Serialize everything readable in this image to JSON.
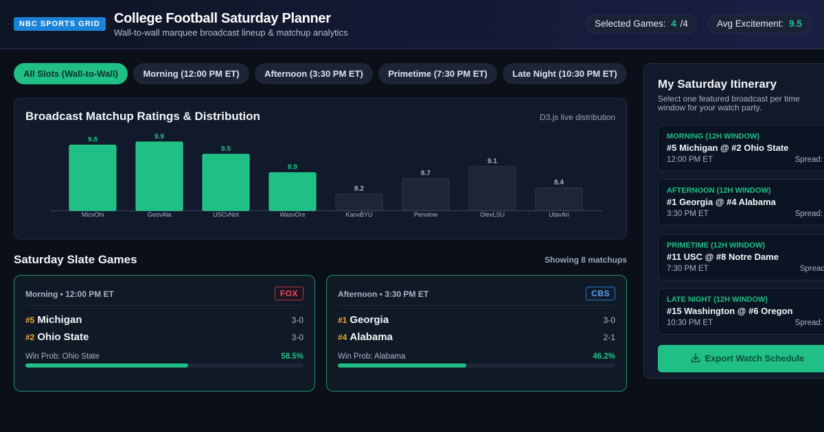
{
  "header": {
    "brand": "NBC SPORTS GRID",
    "title": "College Football Saturday Planner",
    "subtitle": "Wall-to-wall marquee broadcast lineup & matchup analytics",
    "selected_label": "Selected Games:",
    "selected_value": "4",
    "selected_total": "/4",
    "avg_label": "Avg Excitement:",
    "avg_value": "9.5"
  },
  "tabs": [
    {
      "label": "All Slots (Wall-to-Wall)",
      "active": true
    },
    {
      "label": "Morning (12:00 PM ET)",
      "active": false
    },
    {
      "label": "Afternoon (3:30 PM ET)",
      "active": false
    },
    {
      "label": "Primetime (7:30 PM ET)",
      "active": false
    },
    {
      "label": "Late Night (10:30 PM ET)",
      "active": false
    }
  ],
  "chart": {
    "title": "Broadcast Matchup Ratings & Distribution",
    "note": "D3.js live distribution"
  },
  "chart_data": {
    "type": "bar",
    "categories": [
      "MicvOhi",
      "GeovAla",
      "USCvNot",
      "WasvOre",
      "KanvBYU",
      "PenvIow",
      "OlevLSU",
      "UtavAri"
    ],
    "values": [
      9.8,
      9.9,
      9.5,
      8.9,
      8.2,
      8.7,
      9.1,
      8.4
    ],
    "highlighted": [
      true,
      true,
      true,
      true,
      false,
      false,
      false,
      false
    ],
    "ylim": [
      0,
      10
    ],
    "colors": {
      "selected": "#1fbf86",
      "unselected": "#1c2638"
    },
    "grid": false,
    "legend": "none"
  },
  "games_section": {
    "title": "Saturday Slate Games",
    "count": "Showing 8 matchups"
  },
  "games": [
    {
      "slot": "Morning • 12:00 PM ET",
      "network": "FOX",
      "team1": {
        "rank": "#5",
        "name": "Michigan",
        "record": "3-0"
      },
      "team2": {
        "rank": "#2",
        "name": "Ohio State",
        "record": "3-0"
      },
      "winprob_label": "Win Prob: Ohio State",
      "winprob_value": "58.5%",
      "winprob_fraction": 0.585
    },
    {
      "slot": "Afternoon • 3:30 PM ET",
      "network": "CBS",
      "team1": {
        "rank": "#1",
        "name": "Georgia",
        "record": "3-0"
      },
      "team2": {
        "rank": "#4",
        "name": "Alabama",
        "record": "2-1"
      },
      "winprob_label": "Win Prob: Alabama",
      "winprob_value": "46.2%",
      "winprob_fraction": 0.462
    }
  ],
  "itinerary": {
    "title": "My Saturday Itinerary",
    "description": "Select one featured broadcast per time window for your watch party.",
    "slots": [
      {
        "window": "MORNING (12H WINDOW)",
        "match": "#5 Michigan @ #2 Ohio State",
        "time": "12:00 PM ET",
        "spread": "Spread: -"
      },
      {
        "window": "AFTERNOON (12H WINDOW)",
        "match": "#1 Georgia @ #4 Alabama",
        "time": "3:30 PM ET",
        "spread": "Spread: -"
      },
      {
        "window": "PRIMETIME (12H WINDOW)",
        "match": "#11 USC @ #8 Notre Dame",
        "time": "7:30 PM ET",
        "spread": "Spread:"
      },
      {
        "window": "LATE NIGHT (12H WINDOW)",
        "match": "#15 Washington @ #6 Oregon",
        "time": "10:30 PM ET",
        "spread": "Spread: -"
      }
    ],
    "export_label": "Export Watch Schedule"
  }
}
